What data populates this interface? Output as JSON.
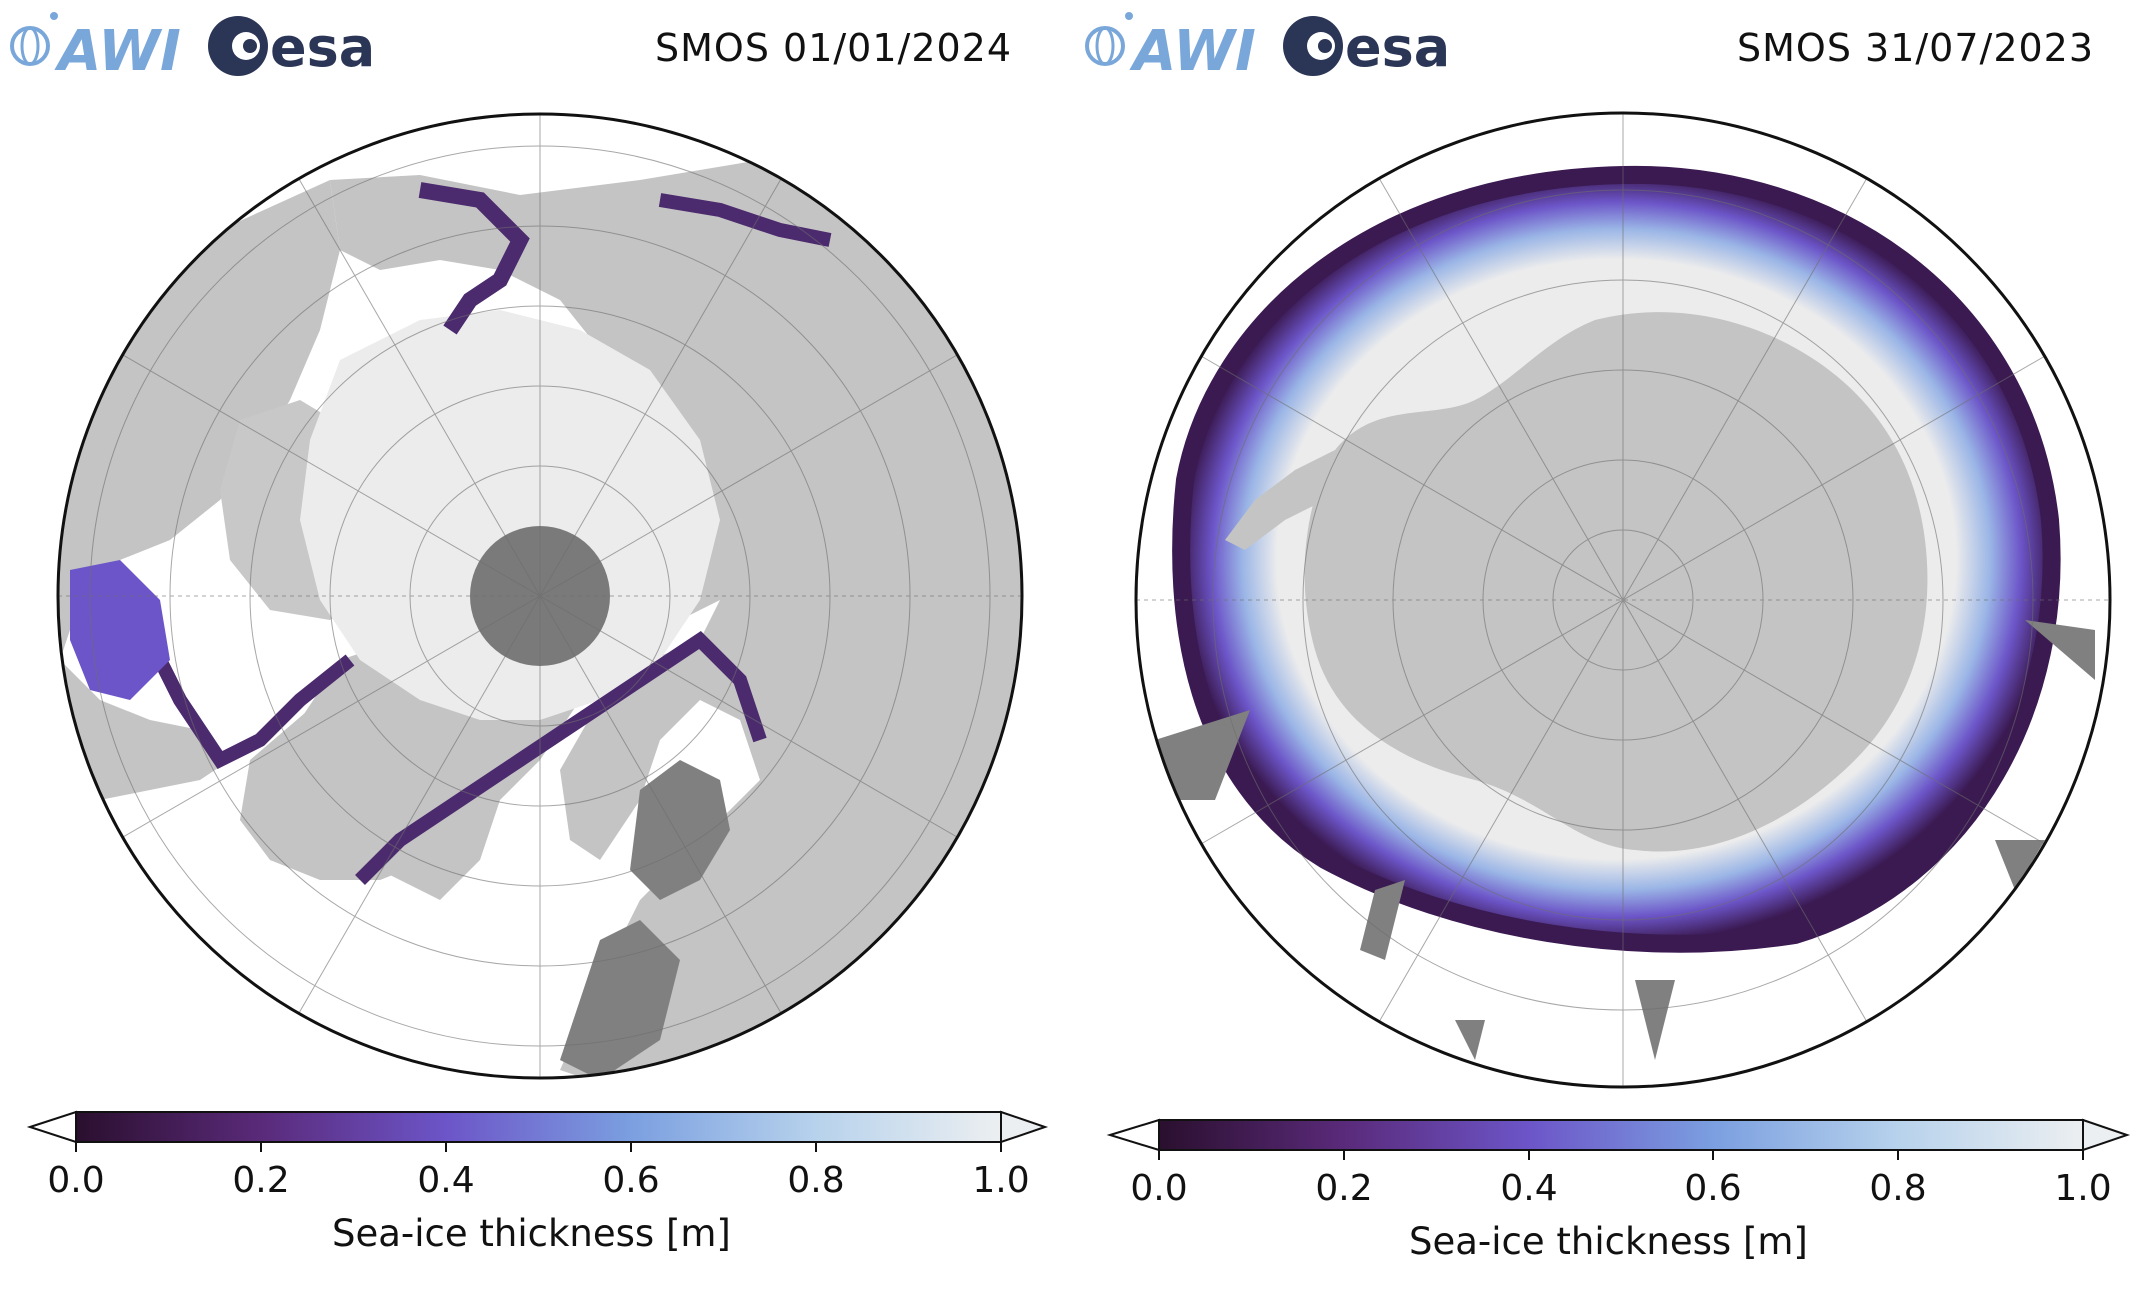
{
  "panels": [
    {
      "id": "arctic",
      "title": "SMOS 01/01/2024",
      "colorbar_label": "Sea-ice thickness [m]",
      "ticks": [
        "0.0",
        "0.2",
        "0.4",
        "0.6",
        "0.8",
        "1.0"
      ]
    },
    {
      "id": "antarctic",
      "title": "SMOS 31/07/2023",
      "colorbar_label": "Sea-ice thickness [m]",
      "ticks": [
        "0.0",
        "0.2",
        "0.4",
        "0.6",
        "0.8",
        "1.0"
      ]
    }
  ],
  "logos": {
    "awi_text": "AWI",
    "esa_text": "esa"
  },
  "colormap": {
    "stops": [
      "#2a0f2e",
      "#5a2a7a",
      "#6c55c8",
      "#7b9fe0",
      "#b7d2ec",
      "#eceff1"
    ]
  },
  "colors": {
    "land": "#c4c4c4",
    "ice": "#ececec",
    "ocean": "#ffffff",
    "pole_hole": "#7a7a7a",
    "dark_land": "#808080",
    "awi_blue": "#7aa7da",
    "esa_navy": "#2b3556"
  }
}
